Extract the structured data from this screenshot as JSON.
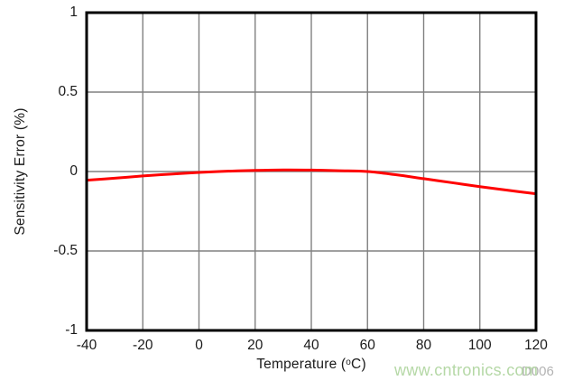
{
  "figure": {
    "watermark_text": "www.cntronics.com",
    "figure_code": "D006"
  },
  "colors": {
    "curve": "#ff0000",
    "grid": "#808080",
    "border": "#000000",
    "text": "#1a1a1a",
    "watermark": "#b5d8a6",
    "figure_code": "#b3b3b3",
    "background": "#ffffff"
  },
  "chart_data": {
    "type": "line",
    "title": "",
    "xlabel": "Temperature (°C)",
    "xlabel_parts": {
      "pre": "Temperature (",
      "sup": "o",
      "post": "C)"
    },
    "ylabel": "Sensitivity Error (%)",
    "xlim": [
      -40,
      120
    ],
    "ylim": [
      -1,
      1
    ],
    "xticks": [
      -40,
      -20,
      0,
      20,
      40,
      60,
      80,
      100,
      120
    ],
    "yticks": [
      1,
      0.5,
      0,
      -0.5,
      -1
    ],
    "ytick_labels": [
      "1",
      "0.5",
      "0",
      "-0.5",
      "-1"
    ],
    "grid": true,
    "legend": "none",
    "series": [
      {
        "name": "Sensitivity Error",
        "color": "#ff0000",
        "x": [
          -40,
          -30,
          -20,
          -10,
          0,
          10,
          20,
          30,
          40,
          50,
          60,
          70,
          80,
          90,
          100,
          110,
          120
        ],
        "y": [
          -0.055,
          -0.042,
          -0.028,
          -0.016,
          -0.006,
          0.002,
          0.007,
          0.01,
          0.009,
          0.005,
          0.0,
          -0.02,
          -0.045,
          -0.07,
          -0.095,
          -0.118,
          -0.14
        ]
      }
    ]
  }
}
